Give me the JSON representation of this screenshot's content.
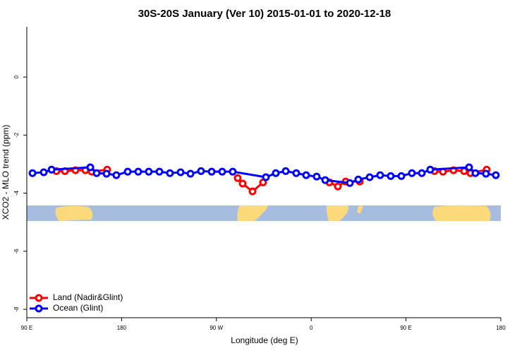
{
  "chart_data": {
    "type": "line",
    "title": "30S-20S January (Ver 10)   2015-01-01 to 2020-12-18",
    "x_label": "Longitude (deg E)",
    "y_label": "XCO2 - MLO trend (ppm)",
    "xlim": [
      90,
      540
    ],
    "xticks": [
      {
        "value": 90,
        "label": "90 E"
      },
      {
        "value": 180,
        "label": "180"
      },
      {
        "value": 270,
        "label": "90 W"
      },
      {
        "value": 360,
        "label": "0"
      },
      {
        "value": 450,
        "label": "90 E"
      },
      {
        "value": 540,
        "label": "180"
      }
    ],
    "ylim": [
      -8.29,
      1.73
    ],
    "yticks": [
      0,
      -2,
      -4,
      -6,
      -8
    ],
    "legend": "bottom-left",
    "series": [
      {
        "name": "Land (Nadir&Glint)",
        "color": "#ff0000",
        "x": [
          118.1,
          126.2,
          136.2,
          145.6,
          151.6,
          166.3,
          null,
          290.2,
          294.9,
          304.3,
          314.3,
          null,
          377.3,
          385.3,
          392.7,
          406.1,
          null,
          477.1,
          485.1,
          495.1,
          505.2,
          511.2,
          526.6
        ],
        "values": [
          -3.24,
          -3.24,
          -3.21,
          -3.21,
          -3.26,
          -3.19,
          null,
          -3.48,
          -3.67,
          -3.94,
          -3.63,
          null,
          -3.63,
          -3.77,
          -3.6,
          -3.6,
          null,
          -3.24,
          -3.26,
          -3.21,
          -3.24,
          -3.31,
          -3.19
        ]
      },
      {
        "name": "Ocean (Glint)",
        "color": "#0000ff",
        "x": [
          95.4,
          106.1,
          113.5,
          150.3,
          156.3,
          165.7,
          175.0,
          185.8,
          195.8,
          205.8,
          215.9,
          225.9,
          236.0,
          245.4,
          255.4,
          265.5,
          275.5,
          285.5,
          317.0,
          326.4,
          335.8,
          345.8,
          355.2,
          365.2,
          373.3,
          396.7,
          404.7,
          415.5,
          425.5,
          435.5,
          445.6,
          455.6,
          465.0,
          473.0,
          509.9,
          515.9,
          525.9,
          535.3
        ],
        "values": [
          -3.31,
          -3.28,
          -3.19,
          -3.11,
          -3.31,
          -3.33,
          -3.38,
          -3.26,
          -3.26,
          -3.26,
          -3.26,
          -3.31,
          -3.28,
          -3.33,
          -3.24,
          -3.26,
          -3.26,
          -3.26,
          -3.45,
          -3.31,
          -3.24,
          -3.31,
          -3.38,
          -3.43,
          -3.55,
          -3.65,
          -3.53,
          -3.45,
          -3.38,
          -3.41,
          -3.41,
          -3.31,
          -3.31,
          -3.19,
          -3.11,
          -3.31,
          -3.33,
          -3.38
        ]
      }
    ]
  }
}
